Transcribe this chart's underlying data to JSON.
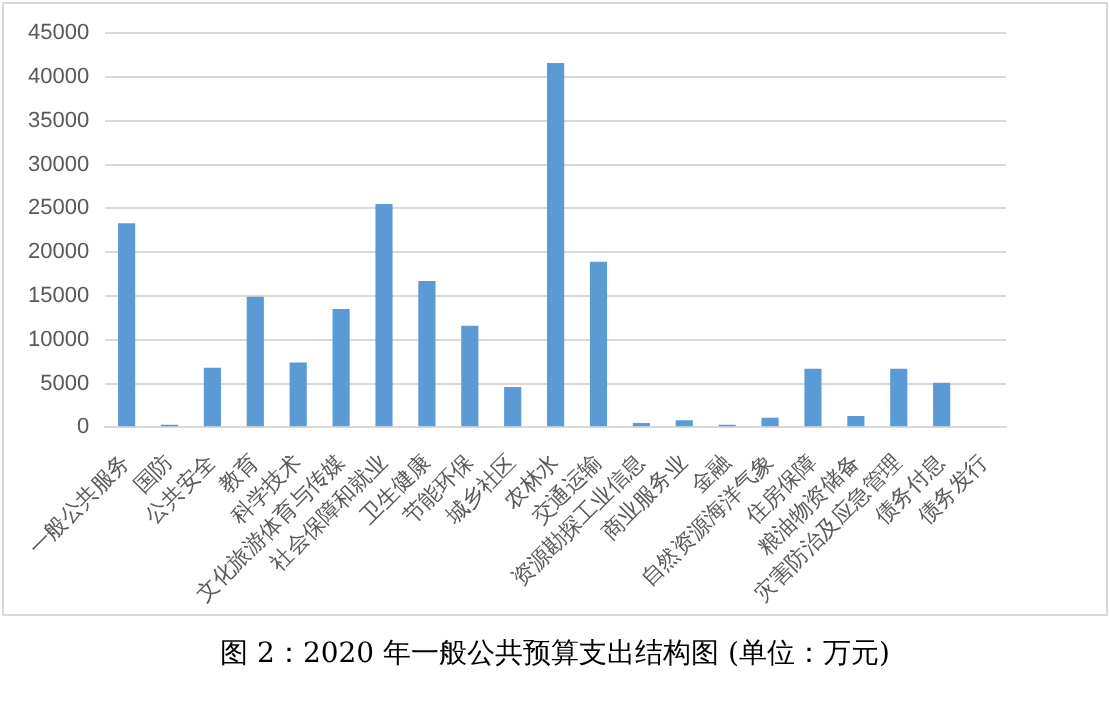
{
  "chart_data": {
    "type": "bar",
    "title": "图 2：2020 年一般公共预算支出结构图 (单位：万元)",
    "categories": [
      "一般公共服务",
      "国防",
      "公共安全",
      "教育",
      "科学技术",
      "文化旅游体育与传媒",
      "社会保障和就业",
      "卫生健康",
      "节能环保",
      "城乡社区",
      "农林水",
      "交通运输",
      "资源勘探工业信息",
      "商业服务业",
      "金融",
      "自然资源海洋气象",
      "住房保障",
      "粮油物资储备",
      "灾害防治及应急管理",
      "债务付息",
      "债务发行"
    ],
    "values": [
      23300,
      300,
      6800,
      14900,
      7400,
      13500,
      25500,
      16700,
      11600,
      4600,
      41600,
      18900,
      500,
      800,
      300,
      1100,
      6700,
      1300,
      6700,
      5100,
      0
    ],
    "color": "#5b9bd5",
    "ylim": [
      0,
      45000
    ],
    "yticks": [
      0,
      5000,
      10000,
      15000,
      20000,
      25000,
      30000,
      35000,
      40000,
      45000
    ],
    "grid": "y"
  }
}
